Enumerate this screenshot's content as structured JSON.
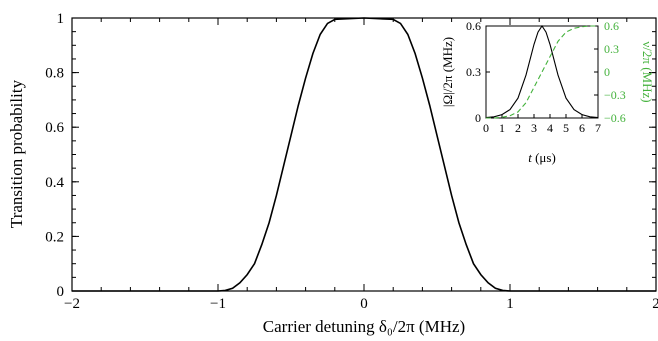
{
  "colors": {
    "main_curve": "#000000",
    "inset_omega": "#000000",
    "inset_nu": "#44b23c"
  },
  "chart_data": [
    {
      "type": "line",
      "xlabel": "Carrier detuning δ₀/2π (MHz)",
      "ylabel": "Transition probability",
      "xlim": [
        -2,
        2
      ],
      "ylim": [
        0,
        1
      ],
      "x_ticks": [
        "−2",
        "−1",
        "0",
        "1",
        "2"
      ],
      "y_ticks": [
        "0",
        "0.2",
        "0.4",
        "0.6",
        "0.8",
        "1"
      ],
      "grid": false,
      "series": [
        {
          "x": [
            -2.0,
            -1.0,
            -0.95,
            -0.9,
            -0.85,
            -0.8,
            -0.75,
            -0.7,
            -0.65,
            -0.6,
            -0.55,
            -0.5,
            -0.45,
            -0.4,
            -0.35,
            -0.3,
            -0.25,
            -0.2,
            0.0,
            0.2,
            0.25,
            0.3,
            0.35,
            0.4,
            0.45,
            0.5,
            0.55,
            0.6,
            0.65,
            0.7,
            0.75,
            0.8,
            0.85,
            0.9,
            0.95,
            1.0,
            2.0
          ],
          "y": [
            0,
            0,
            0.002,
            0.01,
            0.03,
            0.06,
            0.1,
            0.17,
            0.25,
            0.35,
            0.46,
            0.57,
            0.68,
            0.78,
            0.87,
            0.94,
            0.98,
            0.995,
            1.0,
            0.995,
            0.98,
            0.94,
            0.87,
            0.78,
            0.68,
            0.57,
            0.46,
            0.35,
            0.25,
            0.17,
            0.1,
            0.06,
            0.03,
            0.01,
            0.002,
            0,
            0
          ]
        }
      ]
    },
    {
      "type": "line",
      "xlabel": "t (μs)",
      "ylabel": "|Ω|/2π (MHz)",
      "ylabel_right": "ν/2π (MHz)",
      "xlim": [
        0,
        7
      ],
      "ylim": [
        0,
        0.6
      ],
      "ylim_right": [
        -0.6,
        0.6
      ],
      "x_ticks": [
        "0",
        "1",
        "2",
        "3",
        "4",
        "5",
        "6",
        "7"
      ],
      "y_ticks": [
        "0",
        "0.3",
        "0.6"
      ],
      "y_ticks_right": [
        "−0.6",
        "−0.3",
        "0",
        "0.3",
        "0.6"
      ],
      "series": [
        {
          "style": "solid",
          "axis": "left",
          "x": [
            0,
            0.5,
            1,
            1.5,
            2,
            2.5,
            3,
            3.25,
            3.5,
            3.75,
            4,
            4.5,
            5,
            5.5,
            6,
            6.5,
            7
          ],
          "y": [
            0.003,
            0.008,
            0.022,
            0.055,
            0.13,
            0.28,
            0.48,
            0.56,
            0.6,
            0.56,
            0.48,
            0.28,
            0.13,
            0.055,
            0.022,
            0.008,
            0.003
          ]
        },
        {
          "style": "dashed",
          "axis": "right",
          "x": [
            0,
            0.5,
            1,
            1.5,
            2,
            2.5,
            3,
            3.5,
            4,
            4.5,
            5,
            5.5,
            6,
            6.5,
            7
          ],
          "y": [
            -0.6,
            -0.6,
            -0.59,
            -0.57,
            -0.52,
            -0.4,
            -0.2,
            0.0,
            0.2,
            0.4,
            0.52,
            0.57,
            0.59,
            0.6,
            0.6
          ]
        }
      ]
    }
  ]
}
